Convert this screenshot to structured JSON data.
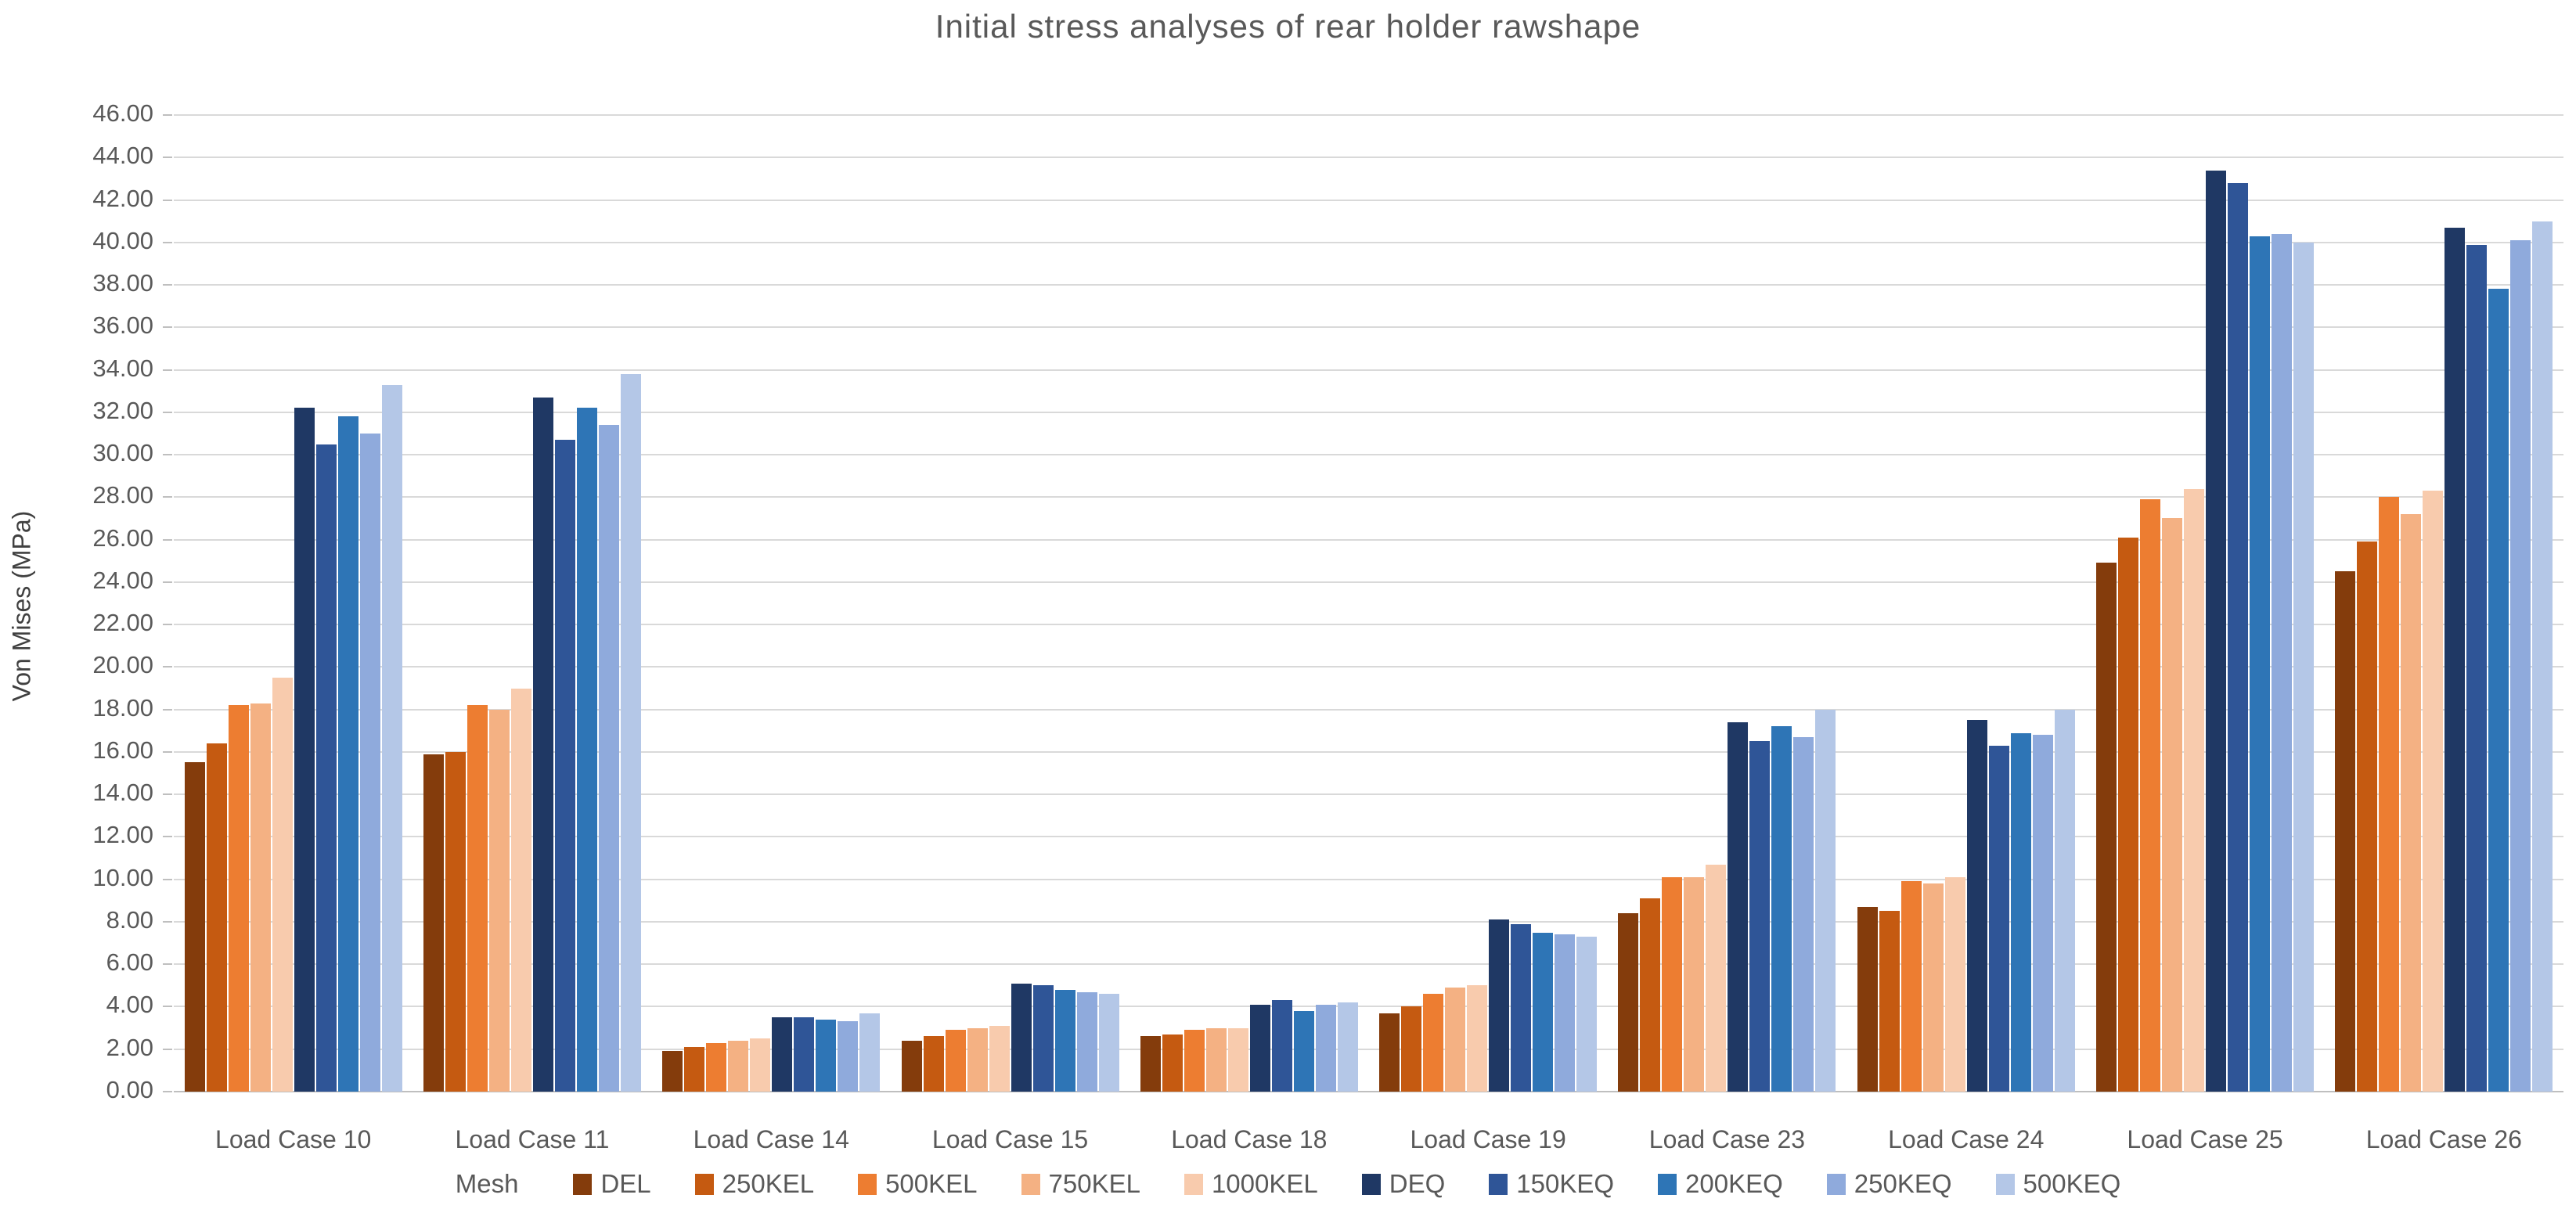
{
  "title": "Initial stress analyses of rear holder rawshape",
  "chart_data": {
    "type": "bar",
    "title": "Initial stress analyses of rear holder rawshape",
    "xlabel": "",
    "ylabel": "Von Mises (MPa)",
    "ylim": [
      0,
      46
    ],
    "ytick_step": 2,
    "ytick_decimals": 2,
    "grid": true,
    "legend_title": "Mesh",
    "legend_position": "bottom",
    "categories": [
      "Load Case 10",
      "Load Case 11",
      "Load Case 14",
      "Load Case 15",
      "Load Case 18",
      "Load Case 19",
      "Load Case 23",
      "Load Case 24",
      "Load Case 25",
      "Load Case 26"
    ],
    "series": [
      {
        "name": "DEL",
        "color": "#843C0C",
        "values": [
          15.5,
          15.9,
          1.9,
          2.4,
          2.6,
          3.7,
          8.4,
          8.7,
          24.9,
          24.5
        ]
      },
      {
        "name": "250KEL",
        "color": "#C55A11",
        "values": [
          16.4,
          16.0,
          2.1,
          2.6,
          2.7,
          4.0,
          9.1,
          8.5,
          26.1,
          25.9
        ]
      },
      {
        "name": "500KEL",
        "color": "#ED7D31",
        "values": [
          18.2,
          18.2,
          2.3,
          2.9,
          2.9,
          4.6,
          10.1,
          9.9,
          27.9,
          28.0
        ]
      },
      {
        "name": "750KEL",
        "color": "#F4B183",
        "values": [
          18.3,
          18.0,
          2.4,
          3.0,
          3.0,
          4.9,
          10.1,
          9.8,
          27.0,
          27.2
        ]
      },
      {
        "name": "1000KEL",
        "color": "#F8CBAD",
        "values": [
          19.5,
          19.0,
          2.5,
          3.1,
          3.0,
          5.0,
          10.7,
          10.1,
          28.4,
          28.3
        ]
      },
      {
        "name": "DEQ",
        "color": "#1F3864",
        "values": [
          32.2,
          32.7,
          3.5,
          5.1,
          4.1,
          8.1,
          17.4,
          17.5,
          43.4,
          40.7
        ]
      },
      {
        "name": "150KEQ",
        "color": "#2F5597",
        "values": [
          30.5,
          30.7,
          3.5,
          5.0,
          4.3,
          7.9,
          16.5,
          16.3,
          42.8,
          39.9
        ]
      },
      {
        "name": "200KEQ",
        "color": "#2E75B6",
        "values": [
          31.8,
          32.2,
          3.4,
          4.8,
          3.8,
          7.5,
          17.2,
          16.9,
          40.3,
          37.8
        ]
      },
      {
        "name": "250KEQ",
        "color": "#8FAADC",
        "values": [
          31.0,
          31.4,
          3.3,
          4.7,
          4.1,
          7.4,
          16.7,
          16.8,
          40.4,
          40.1
        ]
      },
      {
        "name": "500KEQ",
        "color": "#B4C7E7",
        "values": [
          33.3,
          33.8,
          3.7,
          4.6,
          4.2,
          7.3,
          18.0,
          18.0,
          40.0,
          41.0
        ]
      }
    ]
  },
  "colors": {
    "title_text": "#595959",
    "axis_text": "#595959",
    "gridline": "#D9D9D9",
    "axis_line": "#BFBFBF",
    "background": "#FFFFFF"
  }
}
